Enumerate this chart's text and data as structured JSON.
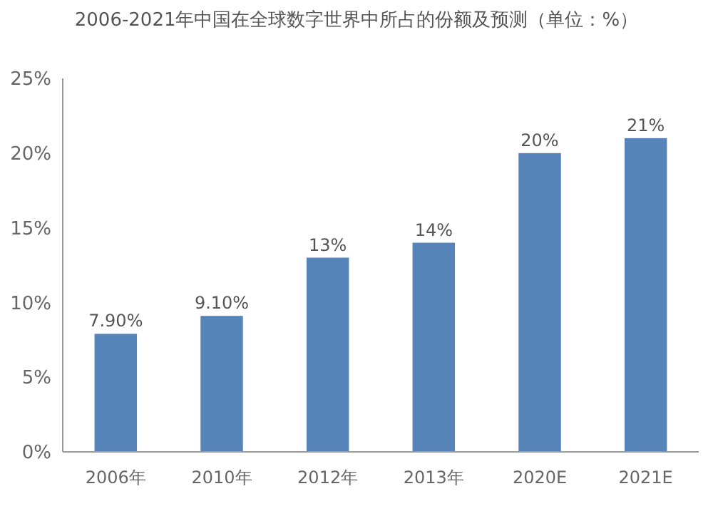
{
  "chart_data": {
    "type": "bar",
    "title": "2006-2021年中国在全球数字世界中所占的份额及预测（单位：%）",
    "categories": [
      "2006年",
      "2010年",
      "2012年",
      "2013年",
      "2020E",
      "2021E"
    ],
    "values": [
      7.9,
      9.1,
      13,
      14,
      20,
      21
    ],
    "value_labels": [
      "7.90%",
      "9.10%",
      "13%",
      "14%",
      "20%",
      "21%"
    ],
    "color": "#5683b8",
    "ylim": [
      0,
      25
    ],
    "yticks": [
      {
        "value": 0,
        "label": "0%"
      },
      {
        "value": 5,
        "label": "5%"
      },
      {
        "value": 10,
        "label": "10%"
      },
      {
        "value": 15,
        "label": "15%"
      },
      {
        "value": 20,
        "label": "20%"
      },
      {
        "value": 25,
        "label": "25%"
      }
    ],
    "grid": false
  }
}
